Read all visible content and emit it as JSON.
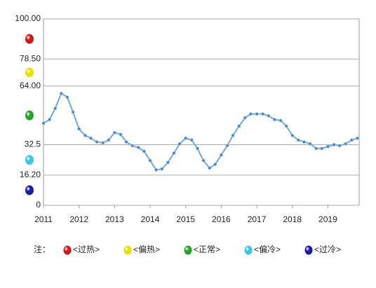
{
  "chart_data": {
    "type": "line",
    "x": [
      2011.0,
      2011.17,
      2011.33,
      2011.5,
      2011.67,
      2011.83,
      2012.0,
      2012.17,
      2012.33,
      2012.5,
      2012.67,
      2012.83,
      2013.0,
      2013.17,
      2013.33,
      2013.5,
      2013.67,
      2013.83,
      2014.0,
      2014.17,
      2014.33,
      2014.5,
      2014.67,
      2014.83,
      2015.0,
      2015.17,
      2015.33,
      2015.5,
      2015.67,
      2015.83,
      2016.0,
      2016.17,
      2016.33,
      2016.5,
      2016.67,
      2016.83,
      2017.0,
      2017.17,
      2017.33,
      2017.5,
      2017.67,
      2017.83,
      2018.0,
      2018.17,
      2018.33,
      2018.5,
      2018.67,
      2018.83,
      2019.0,
      2019.17,
      2019.33,
      2019.5,
      2019.67,
      2019.83
    ],
    "series": [
      {
        "color": "#6fa8dc",
        "values": [
          44,
          46,
          52,
          60,
          58,
          50,
          41,
          37.5,
          36,
          34,
          33.5,
          35,
          39,
          38,
          34,
          32,
          31,
          29,
          24,
          19,
          19.5,
          23,
          28,
          33,
          36,
          35,
          30.5,
          24,
          20,
          22,
          27,
          32,
          37.5,
          42.5,
          47,
          49,
          49,
          49,
          48,
          46,
          45.5,
          42.5,
          37.5,
          35,
          34,
          33,
          30.5,
          30.5,
          31.5,
          32.5,
          32,
          33,
          35,
          36
        ]
      }
    ],
    "xlim": [
      2011,
      2019.88
    ],
    "xticks": [
      2011,
      2012,
      2013,
      2014,
      2015,
      2016,
      2017,
      2018,
      2019
    ],
    "ylim": [
      0,
      100
    ],
    "yticks": [
      0,
      {
        "value": 16.2,
        "label": "16.20"
      },
      32.5,
      {
        "value": 64,
        "label": "64.00"
      },
      {
        "value": 78.5,
        "label": "78.50"
      },
      {
        "value": 100,
        "label": "100.00"
      }
    ],
    "grid": true,
    "legend_title": "注：",
    "zones": [
      {
        "name": "<过冷>",
        "color": "#1a1aa6"
      },
      {
        "name": "<偏冷>",
        "color": "#3ec3e6"
      },
      {
        "name": "<正常>",
        "color": "#22a32a"
      },
      {
        "name": "<偏热>",
        "color": "#e8e000"
      },
      {
        "name": "<过热>",
        "color": "#d01818"
      }
    ]
  }
}
